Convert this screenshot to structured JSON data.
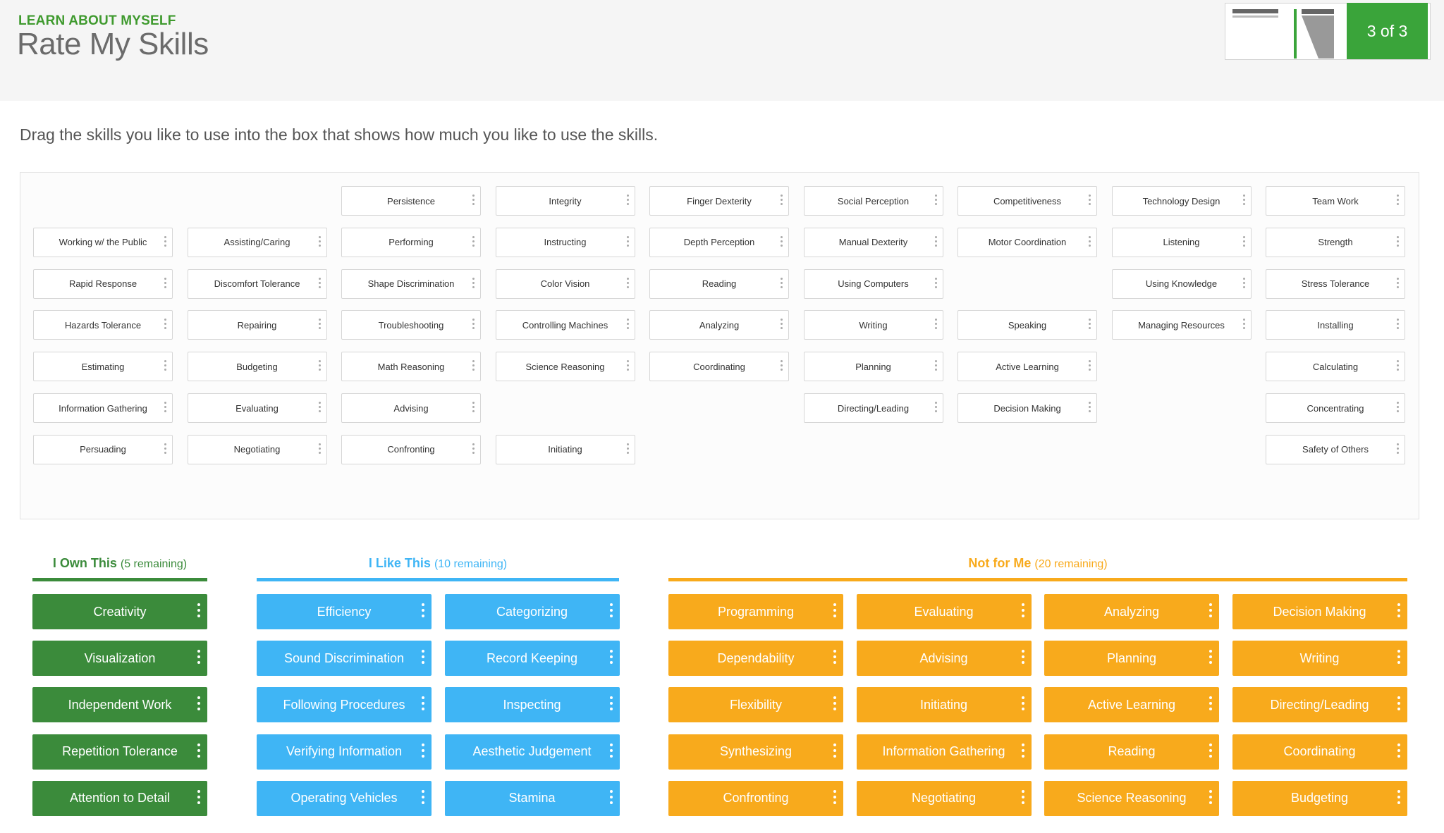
{
  "header": {
    "kicker": "LEARN ABOUT MYSELF",
    "title": "Rate My Skills",
    "step": "3 of 3"
  },
  "instruction": "Drag the skills you like to use into the box that shows how much you like to use the skills.",
  "pool": [
    {
      "label": "Persistence"
    },
    {
      "label": "Integrity"
    },
    {
      "label": "Finger Dexterity"
    },
    {
      "label": "Social Perception"
    },
    {
      "label": "Competitiveness"
    },
    {
      "label": "Technology Design"
    },
    {
      "label": "Team Work"
    },
    {
      "label": "Working w/ the Public"
    },
    {
      "label": "Assisting/Caring"
    },
    {
      "label": "Performing"
    },
    {
      "label": "Instructing"
    },
    {
      "label": "Depth Perception"
    },
    {
      "label": "Manual Dexterity"
    },
    {
      "label": "Motor Coordination"
    },
    {
      "label": "Listening"
    },
    {
      "label": "Strength"
    },
    {
      "label": "Rapid Response"
    },
    {
      "label": "Discomfort Tolerance"
    },
    {
      "label": "Shape Discrimination"
    },
    {
      "label": "Color Vision"
    },
    {
      "label": "Reading"
    },
    {
      "label": "Using Computers"
    },
    {
      "label": "Using Knowledge"
    },
    {
      "label": "Stress Tolerance"
    },
    {
      "label": "Hazards Tolerance"
    },
    {
      "label": "Repairing"
    },
    {
      "label": "Troubleshooting"
    },
    {
      "label": "Controlling Machines"
    },
    {
      "label": "Analyzing"
    },
    {
      "label": "Writing"
    },
    {
      "label": "Speaking"
    },
    {
      "label": "Managing Resources"
    },
    {
      "label": "Installing"
    },
    {
      "label": "Estimating"
    },
    {
      "label": "Budgeting"
    },
    {
      "label": "Math Reasoning"
    },
    {
      "label": "Science Reasoning"
    },
    {
      "label": "Coordinating"
    },
    {
      "label": "Planning"
    },
    {
      "label": "Active Learning"
    },
    {
      "label": "Calculating"
    },
    {
      "label": "Information Gathering"
    },
    {
      "label": "Evaluating"
    },
    {
      "label": "Advising"
    },
    {
      "label": "Directing/Leading"
    },
    {
      "label": "Decision Making"
    },
    {
      "label": "Concentrating"
    },
    {
      "label": "Persuading"
    },
    {
      "label": "Negotiating"
    },
    {
      "label": "Confronting"
    },
    {
      "label": "Initiating"
    },
    {
      "label": "Safety of Others"
    }
  ],
  "own": {
    "title": "I Own This",
    "remaining": "(5 remaining)",
    "color": "#3b8b3b",
    "items": [
      "Creativity",
      "Visualization",
      "Independent Work",
      "Repetition Tolerance",
      "Attention to Detail"
    ]
  },
  "like": {
    "title": "I Like This",
    "remaining": "(10 remaining)",
    "color": "#3fb5f5",
    "items": [
      "Efficiency",
      "Categorizing",
      "Sound Discrimination",
      "Record Keeping",
      "Following Procedures",
      "Inspecting",
      "Verifying Information",
      "Aesthetic Judgement",
      "Operating Vehicles",
      "Stamina"
    ]
  },
  "notme": {
    "title": "Not for Me",
    "remaining": "(20 remaining)",
    "color": "#f8aa1c",
    "items": [
      "Programming",
      "Evaluating",
      "Analyzing",
      "Decision Making",
      "Dependability",
      "Advising",
      "Planning",
      "Writing",
      "Flexibility",
      "Initiating",
      "Active Learning",
      "Directing/Leading",
      "Synthesizing",
      "Information Gathering",
      "Reading",
      "Coordinating",
      "Confronting",
      "Negotiating",
      "Science Reasoning",
      "Budgeting"
    ]
  }
}
